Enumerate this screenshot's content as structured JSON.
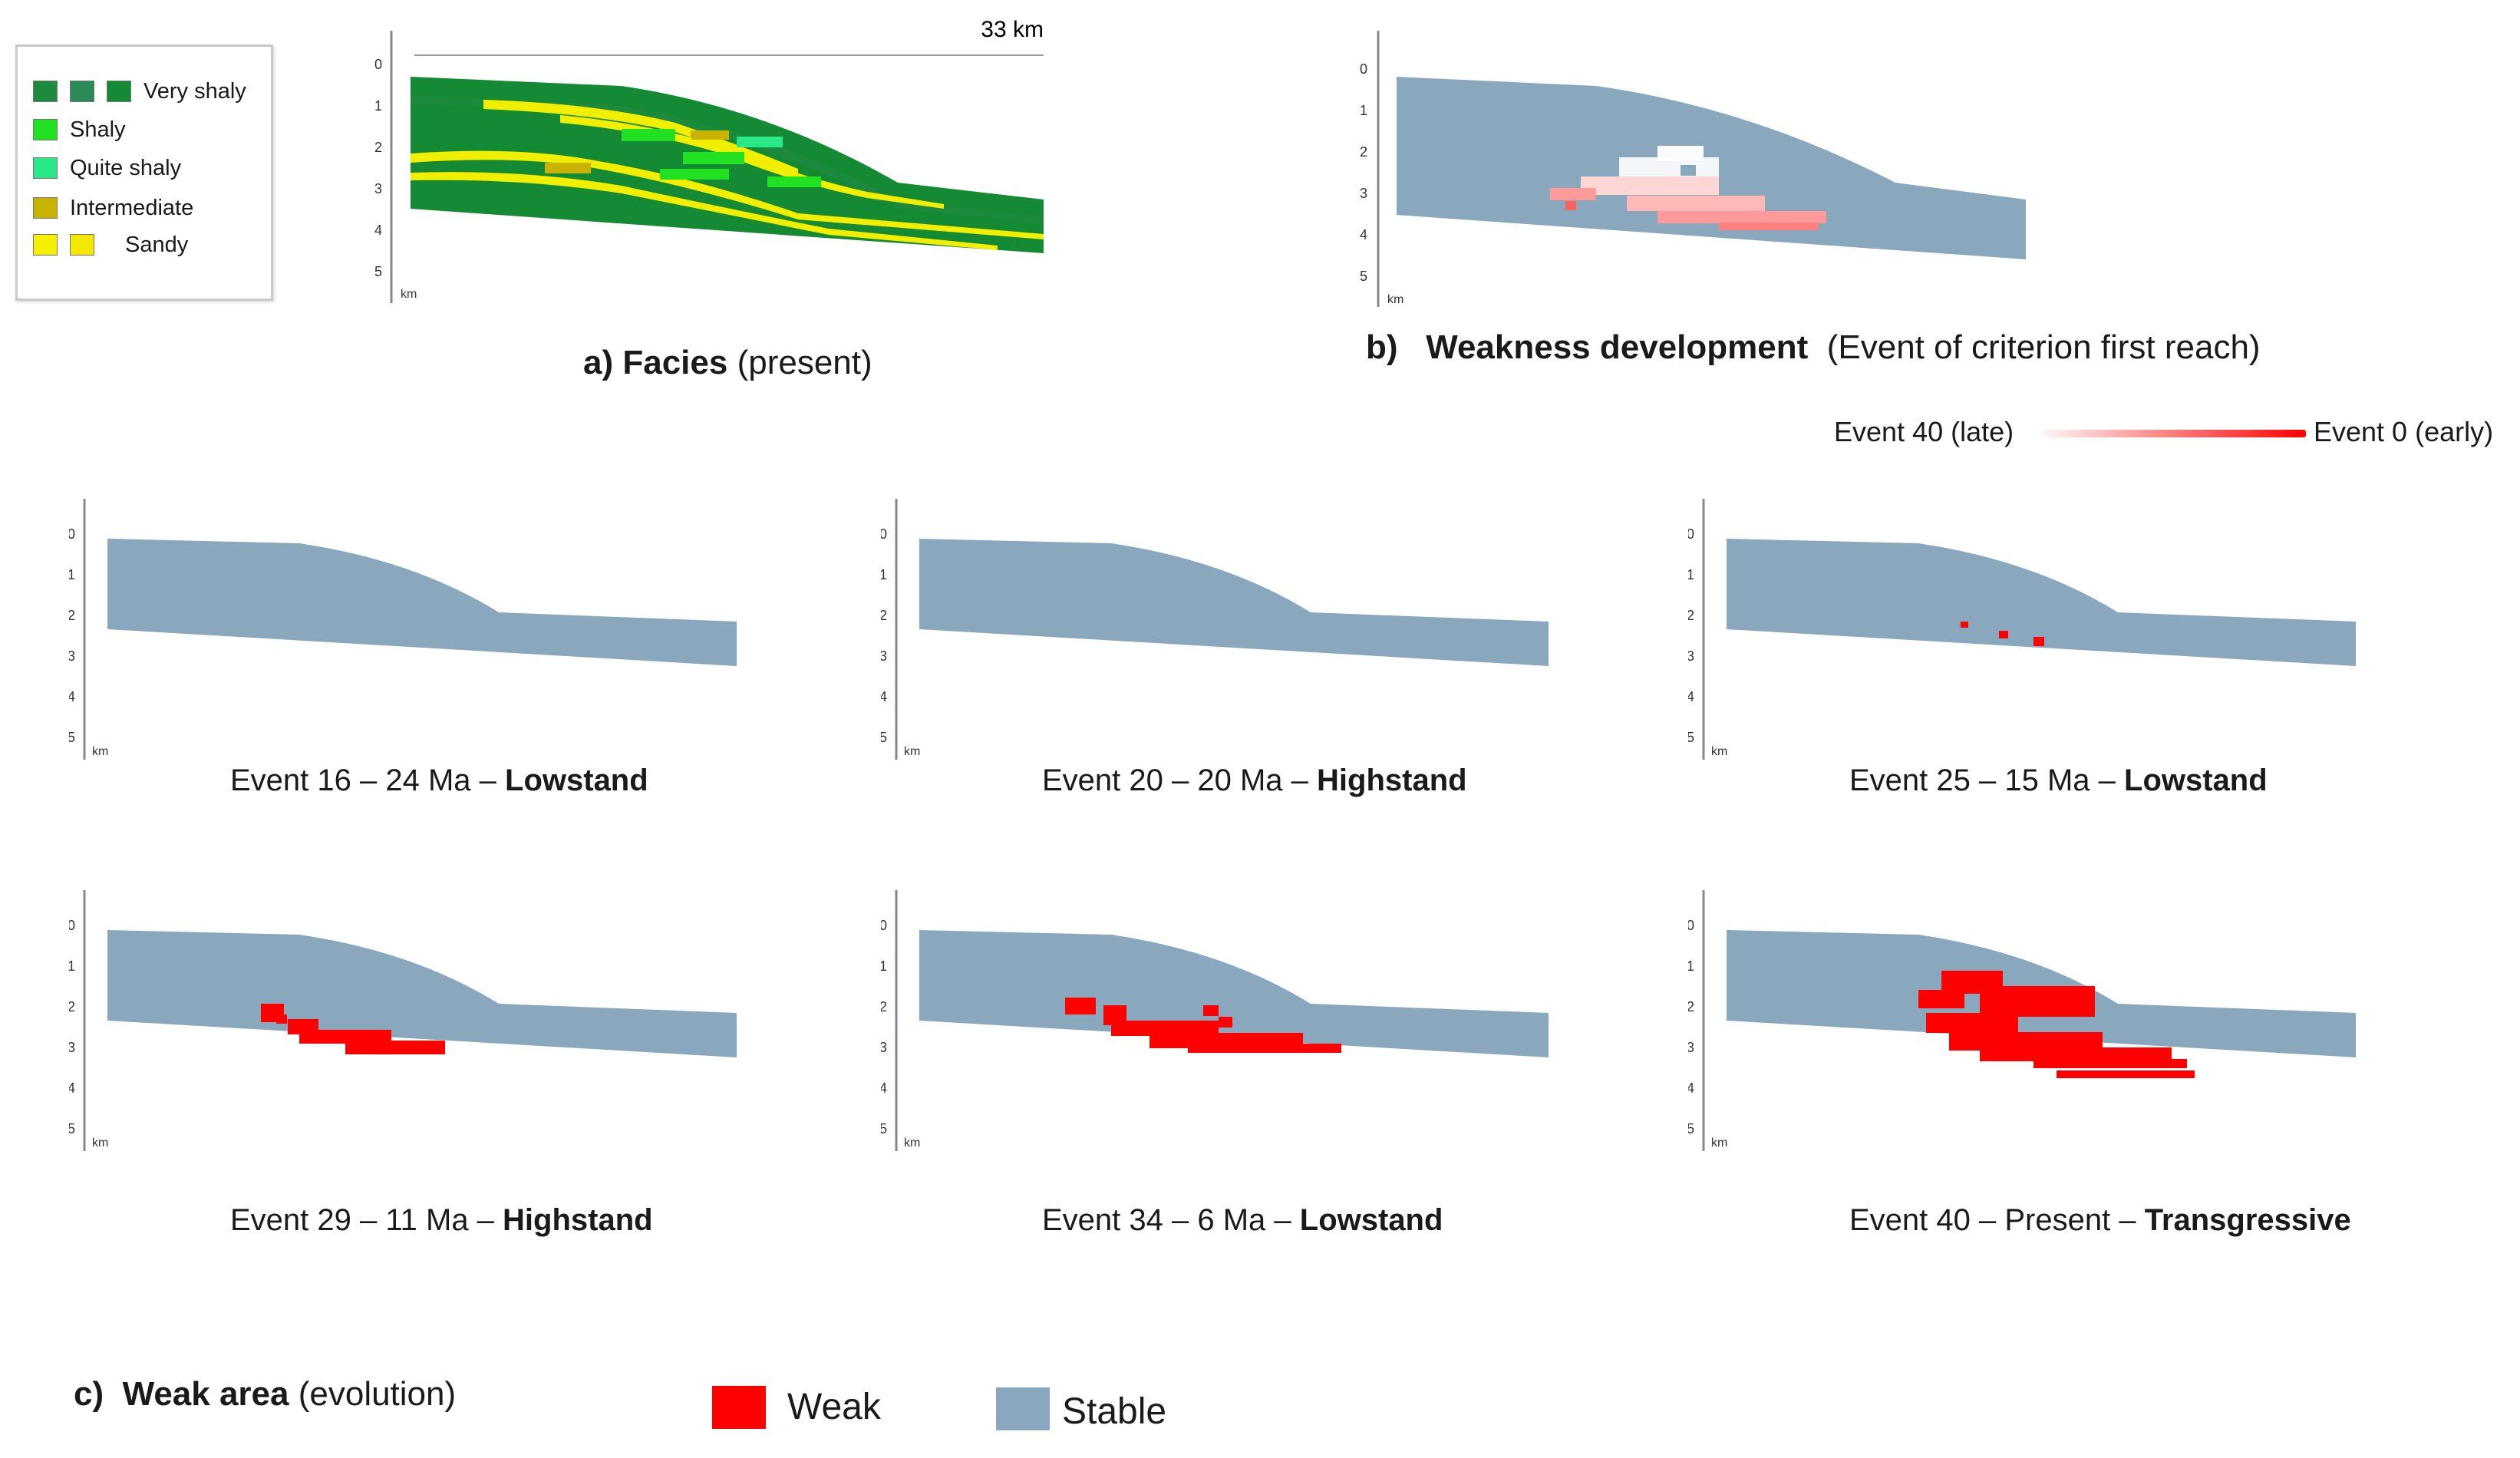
{
  "legend": {
    "items": [
      {
        "label": "Very shaly",
        "colors": [
          "#1e8a3e",
          "#2a8a58",
          "#138a33"
        ]
      },
      {
        "label": "Shaly",
        "colors": [
          "#22e022"
        ]
      },
      {
        "label": "Quite shaly",
        "colors": [
          "#2ae888"
        ]
      },
      {
        "label": "Intermediate",
        "colors": [
          "#c8b400"
        ]
      },
      {
        "label": "Sandy",
        "colors": [
          "#f5f000",
          "#f5e800"
        ]
      }
    ]
  },
  "panel_a": {
    "scale_label": "33 km",
    "depth_ticks": [
      "0",
      "1",
      "2",
      "3",
      "4",
      "5"
    ],
    "unit": "km",
    "caption_prefix": "a)",
    "caption_bold": "Facies",
    "caption_rest": "(present)"
  },
  "panel_b": {
    "depth_ticks": [
      "0",
      "1",
      "2",
      "3",
      "4",
      "5"
    ],
    "unit": "km",
    "caption_prefix": "b)",
    "caption_bold": "Weakness development",
    "caption_rest": "(Event of criterion first reach)",
    "gradient_left": "Event 40 (late)",
    "gradient_right": "Event 0 (early)"
  },
  "events": [
    {
      "name": "Event 16 – 24 Ma –",
      "stage": "Lowstand",
      "weak_amount": 0
    },
    {
      "name": "Event 20 – 20 Ma –",
      "stage": "Highstand",
      "weak_amount": 0
    },
    {
      "name": "Event 25 – 15 Ma –",
      "stage": "Lowstand",
      "weak_amount": 1
    },
    {
      "name": "Event 29 – 11 Ma –",
      "stage": "Highstand",
      "weak_amount": 2
    },
    {
      "name": "Event 34 – 6 Ma –",
      "stage": "Lowstand",
      "weak_amount": 3
    },
    {
      "name": "Event 40 – Present –",
      "stage": "Transgressive",
      "weak_amount": 4
    }
  ],
  "event_axis": {
    "depth_ticks": [
      "0",
      "1",
      "2",
      "3",
      "4",
      "5"
    ],
    "unit": "km"
  },
  "panel_c": {
    "caption_prefix": "c)",
    "caption_bold": "Weak area",
    "caption_rest": "(evolution)",
    "weak_label": "Weak",
    "stable_label": "Stable"
  },
  "colors": {
    "weak": "#ff0000",
    "stable": "#8aa8bd",
    "sandy": "#f2ee00",
    "green_dark": "#138a33"
  }
}
